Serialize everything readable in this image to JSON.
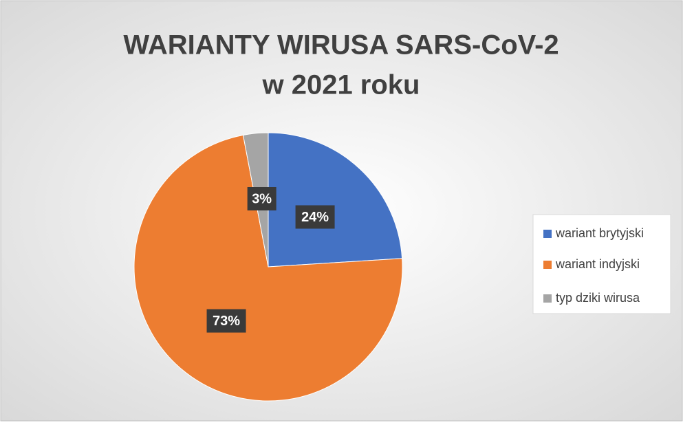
{
  "chart_data": {
    "type": "pie",
    "title": [
      "WARIANTY WIRUSA SARS-CoV-2",
      "w 2021 roku"
    ],
    "categories": [
      "wariant brytyjski",
      "wariant indyjski",
      "typ dziki wirusa"
    ],
    "values": [
      24,
      73,
      3
    ],
    "value_labels": [
      "24%",
      "73%",
      "3%"
    ],
    "colors": [
      "#4472c4",
      "#ed7d31",
      "#a5a5a5"
    ],
    "legend": "right"
  }
}
